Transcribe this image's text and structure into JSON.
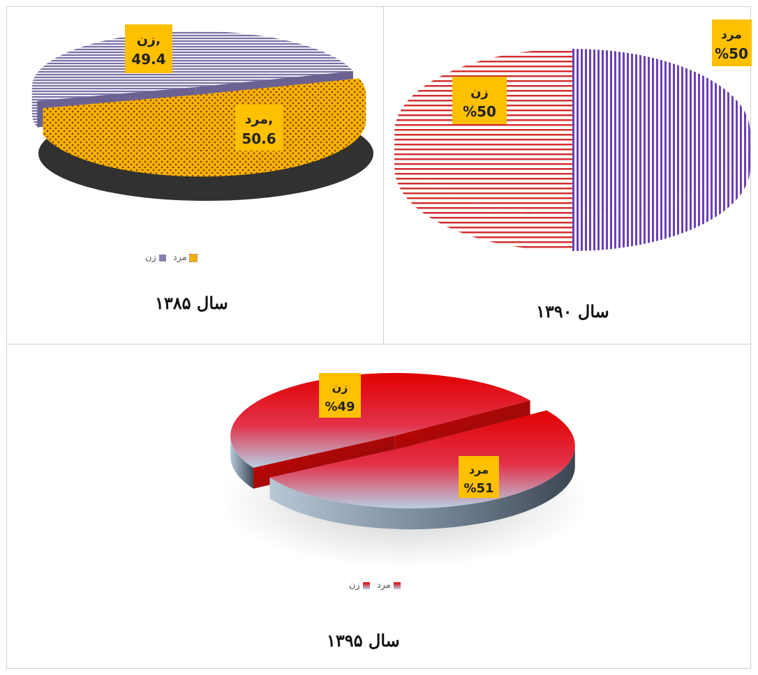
{
  "chart_data": [
    {
      "type": "pie",
      "title": "سال ۱۳۸۵",
      "categories": [
        "زن",
        "مرد"
      ],
      "values": [
        49.4,
        50.6
      ],
      "data_labels": [
        {
          "category": "زن,",
          "value": "49.4"
        },
        {
          "category": "مرد,",
          "value": "50.6"
        }
      ],
      "legend": [
        "مرد",
        "زن"
      ],
      "legend_position": "bottom",
      "colors": {
        "زن": "#8a7fb0",
        "مرد": "#e9b400"
      }
    },
    {
      "type": "pie",
      "title": "سال ۱۳۹۰",
      "categories": [
        "زن",
        "مرد"
      ],
      "values": [
        50,
        50
      ],
      "data_labels": [
        {
          "category": "زن",
          "value": "%50"
        },
        {
          "category": "مرد",
          "value": "%50"
        }
      ],
      "colors": {
        "زن": "#d32f2f",
        "مرد": "#6a3fb5"
      }
    },
    {
      "type": "pie",
      "title": "سال ۱۳۹۵",
      "categories": [
        "زن",
        "مرد"
      ],
      "values": [
        49,
        51
      ],
      "data_labels": [
        {
          "category": "زن",
          "value": "%49"
        },
        {
          "category": "مرد",
          "value": "%51"
        }
      ],
      "legend": [
        "مرد",
        "زن"
      ],
      "legend_position": "bottom",
      "colors": {
        "زن": "#e00000",
        "مرد": "#e00000",
        "gradient_low": "#b8cfe3"
      }
    }
  ],
  "colors": {
    "label_box": "#ffc000"
  }
}
